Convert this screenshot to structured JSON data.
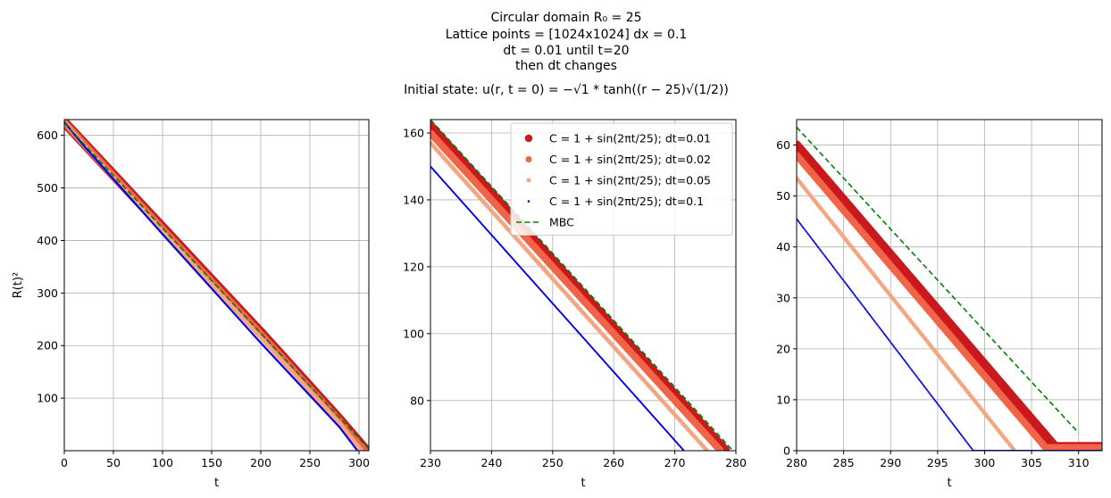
{
  "figure": {
    "title_lines": [
      "Circular domain R₀ = 25",
      "Lattice points = [1024x1024] dx = 0.1",
      "dt = 0.01 until t=20",
      "then dt changes",
      "Initial state: u(r, t = 0) = −√1 * tanh((r − 25)√(1/2))"
    ]
  },
  "colors": {
    "dt001": "#cb181d",
    "dt002": "#ef6548",
    "dt005": "#f4a582",
    "dt01": "#0000ee",
    "mbc": "#008000",
    "grid": "#b0b0b0"
  },
  "chart_data": [
    {
      "type": "scatter",
      "name": "panel-full",
      "title": "",
      "xlabel": "t",
      "ylabel": "R(t)²",
      "xlim": [
        0,
        310
      ],
      "ylim": [
        0,
        630
      ],
      "xticks": [
        0,
        50,
        100,
        150,
        200,
        250,
        300
      ],
      "yticks": [
        100,
        200,
        300,
        400,
        500,
        600
      ],
      "grid": true,
      "legend": null,
      "series": [
        {
          "name": "C = 1 + sin(2πt/25); dt=0.01",
          "key": "dt001",
          "x": [
            0,
            20,
            100,
            200,
            280,
            307.5
          ],
          "y": [
            625,
            585,
            425,
            225,
            60,
            0
          ],
          "marker": "circle-large"
        },
        {
          "name": "C = 1 + sin(2πt/25); dt=0.02",
          "key": "dt002",
          "x": [
            0,
            20,
            100,
            200,
            280,
            306
          ],
          "y": [
            625,
            584,
            422,
            222,
            57,
            0
          ],
          "marker": "circle-medium"
        },
        {
          "name": "C = 1 + sin(2πt/25); dt=0.05",
          "key": "dt005",
          "x": [
            0,
            20,
            100,
            200,
            280,
            303
          ],
          "y": [
            625,
            582,
            418,
            215,
            53,
            0
          ],
          "marker": "circle-small"
        },
        {
          "name": "C = 1 + sin(2πt/25); dt=0.1",
          "key": "dt01",
          "x": [
            0,
            20,
            100,
            200,
            280,
            298.5
          ],
          "y": [
            625,
            580,
            412,
            205,
            45,
            0
          ],
          "marker": "dot"
        },
        {
          "name": "MBC",
          "key": "mbc",
          "x": [
            0,
            310
          ],
          "y": [
            623.5,
            3.5
          ],
          "marker": "dashed-line"
        }
      ]
    },
    {
      "type": "scatter",
      "name": "panel-zoom-mid",
      "title": "",
      "xlabel": "t",
      "ylabel": "",
      "xlim": [
        230,
        280
      ],
      "ylim": [
        65,
        164
      ],
      "xticks": [
        230,
        240,
        250,
        260,
        270,
        280
      ],
      "yticks": [
        80,
        100,
        120,
        140,
        160
      ],
      "grid": true,
      "legend": "top-right",
      "series": [
        {
          "name": "C = 1 + sin(2πt/25); dt=0.01",
          "key": "dt001",
          "x": [
            230,
            278.3
          ],
          "y": [
            162.0,
            65.0
          ],
          "marker": "circle-large"
        },
        {
          "name": "C = 1 + sin(2πt/25); dt=0.02",
          "key": "dt002",
          "x": [
            230,
            277.5
          ],
          "y": [
            160.0,
            65.0
          ],
          "marker": "circle-medium"
        },
        {
          "name": "C = 1 + sin(2πt/25); dt=0.05",
          "key": "dt005",
          "x": [
            230,
            275.3
          ],
          "y": [
            157.0,
            65.0
          ],
          "marker": "circle-small"
        },
        {
          "name": "C = 1 + sin(2πt/25); dt=0.1",
          "key": "dt01",
          "x": [
            230,
            271.5
          ],
          "y": [
            150.0,
            65.0
          ],
          "marker": "dot"
        },
        {
          "name": "MBC",
          "key": "mbc",
          "x": [
            230,
            280
          ],
          "y": [
            164.0,
            64.0
          ],
          "marker": "dashed-line"
        }
      ]
    },
    {
      "type": "scatter",
      "name": "panel-zoom-end",
      "title": "",
      "xlabel": "t",
      "ylabel": "",
      "xlim": [
        280,
        312.5
      ],
      "ylim": [
        0,
        65
      ],
      "xticks": [
        280,
        285,
        290,
        295,
        300,
        305,
        310
      ],
      "yticks": [
        0,
        10,
        20,
        30,
        40,
        50,
        60
      ],
      "grid": true,
      "legend": null,
      "series": [
        {
          "name": "C = 1 + sin(2πt/25); dt=0.01",
          "key": "dt001",
          "x": [
            280,
            307.5,
            312.5
          ],
          "y": [
            60.0,
            0.8,
            0.8
          ],
          "marker": "circle-large"
        },
        {
          "name": "C = 1 + sin(2πt/25); dt=0.02",
          "key": "dt002",
          "x": [
            280,
            306.5,
            312.5
          ],
          "y": [
            58.0,
            0.6,
            0.6
          ],
          "marker": "circle-medium"
        },
        {
          "name": "C = 1 + sin(2πt/25); dt=0.05",
          "key": "dt005",
          "x": [
            280,
            303.2
          ],
          "y": [
            53.5,
            0.0
          ],
          "marker": "circle-small"
        },
        {
          "name": "C = 1 + sin(2πt/25); dt=0.1",
          "key": "dt01",
          "x": [
            280,
            298.8,
            312.5
          ],
          "y": [
            45.5,
            0.0,
            0.0
          ],
          "marker": "dot"
        },
        {
          "name": "MBC",
          "key": "mbc",
          "x": [
            280,
            310
          ],
          "y": [
            63.5,
            3.5
          ],
          "marker": "dashed-line"
        }
      ]
    }
  ]
}
